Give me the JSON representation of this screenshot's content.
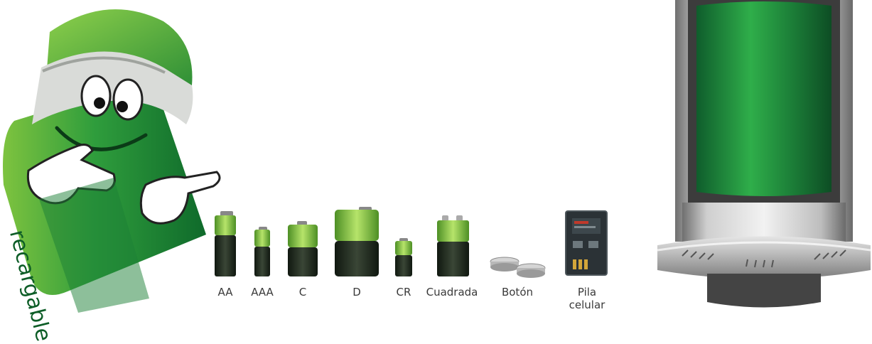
{
  "mascot": {
    "body_text": "recargable"
  },
  "battery_types": [
    {
      "label": "AA"
    },
    {
      "label": "AAA"
    },
    {
      "label": "C"
    },
    {
      "label": "D"
    },
    {
      "label": "CR"
    },
    {
      "label": "Cuadrada"
    },
    {
      "label": "Botón"
    },
    {
      "label": "Pila celular"
    }
  ],
  "colors": {
    "battery_green": "#7cc242",
    "battery_dark": "#1e2a1c",
    "container_green": "#1f8a3c",
    "steel": "#b9b9b9"
  }
}
